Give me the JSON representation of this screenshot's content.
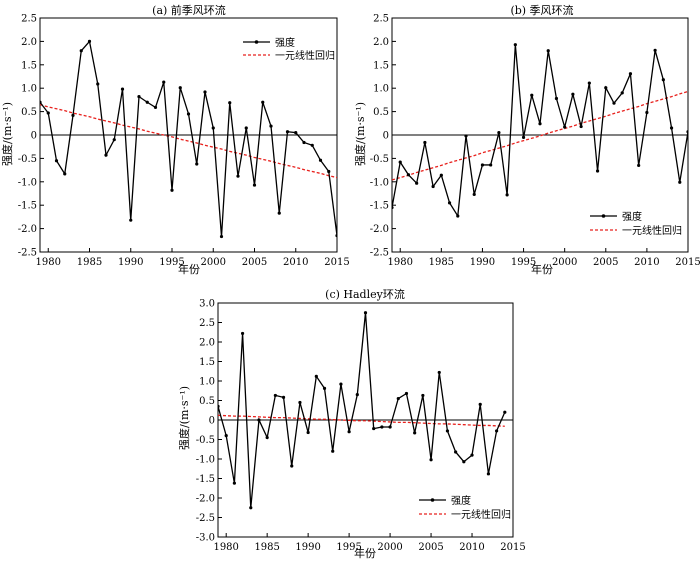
{
  "chart_data": [
    {
      "type": "line",
      "title": "(a) 前季风环流",
      "xlabel": "年份",
      "ylabel": "强度/(m·s⁻¹)",
      "xlim": [
        1979,
        2015
      ],
      "ylim": [
        -2.5,
        2.5
      ],
      "xticks": [
        1980,
        1985,
        1990,
        1995,
        2000,
        2005,
        2010,
        2015
      ],
      "xtick_labels": [
        "1980",
        "1985",
        "1990",
        "1995",
        "2000",
        "2005",
        "2010",
        "2015"
      ],
      "yticks": [
        -2.5,
        -2.0,
        -1.5,
        -1.0,
        -0.5,
        0,
        0.5,
        1.0,
        1.5,
        2.0,
        2.5
      ],
      "ytick_labels": [
        "-2.5",
        "-2.0",
        "-1.5",
        "-1.0",
        "-0.5",
        "0",
        "0.5",
        "1.0",
        "1.5",
        "2.0",
        "2.5"
      ],
      "zero_line": true,
      "legend_position": "top-right",
      "x": [
        1979,
        1980,
        1981,
        1982,
        1983,
        1984,
        1985,
        1986,
        1987,
        1988,
        1989,
        1990,
        1991,
        1992,
        1993,
        1994,
        1995,
        1996,
        1997,
        1998,
        1999,
        2000,
        2001,
        2002,
        2003,
        2004,
        2005,
        2006,
        2007,
        2008,
        2009,
        2010,
        2011,
        2012,
        2013,
        2014,
        2015
      ],
      "series": [
        {
          "name": "强度",
          "style": "line-marker",
          "color": "#000000",
          "values": [
            0.7,
            0.47,
            -0.55,
            -0.83,
            0.42,
            1.8,
            2.0,
            1.09,
            -0.43,
            -0.1,
            0.98,
            -1.82,
            0.82,
            0.7,
            0.59,
            1.13,
            -1.18,
            1.01,
            0.45,
            -0.62,
            0.92,
            0.15,
            -2.17,
            0.69,
            -0.88,
            0.15,
            -1.07,
            0.7,
            0.19,
            -1.67,
            0.07,
            0.05,
            -0.16,
            -0.22,
            -0.54,
            -0.78,
            -2.15
          ]
        },
        {
          "name": "一元线性回归",
          "style": "dashed",
          "color": "#e8211d",
          "values": [
            0.65,
            0.6,
            0.56,
            0.52,
            0.47,
            0.43,
            0.39,
            0.34,
            0.3,
            0.26,
            0.21,
            0.17,
            0.13,
            0.08,
            0.04,
            0.0,
            -0.04,
            -0.09,
            -0.13,
            -0.17,
            -0.22,
            -0.26,
            -0.3,
            -0.35,
            -0.39,
            -0.43,
            -0.48,
            -0.52,
            -0.56,
            -0.61,
            -0.65,
            -0.69,
            -0.74,
            -0.78,
            -0.82,
            -0.87,
            -0.91
          ]
        }
      ]
    },
    {
      "type": "line",
      "title": "(b) 季风环流",
      "xlabel": "年份",
      "ylabel": "强度/(m·s⁻¹)",
      "xlim": [
        1979,
        2015
      ],
      "ylim": [
        -2.5,
        2.5
      ],
      "xticks": [
        1980,
        1985,
        1990,
        1995,
        2000,
        2005,
        2010,
        2015
      ],
      "xtick_labels": [
        "1980",
        "1985",
        "1990",
        "1995",
        "2000",
        "2005",
        "2010",
        "2015"
      ],
      "yticks": [
        -2.5,
        -2.0,
        -1.5,
        -1.0,
        -0.5,
        0,
        0.5,
        1.0,
        1.5,
        2.0,
        2.5
      ],
      "ytick_labels": [
        "-2.5",
        "-2.0",
        "-1.5",
        "-1.0",
        "-0.5",
        "0",
        "0.5",
        "1.0",
        "1.5",
        "2.0",
        "2.5"
      ],
      "zero_line": true,
      "legend_position": "bottom-right",
      "x": [
        1979,
        1980,
        1981,
        1982,
        1983,
        1984,
        1985,
        1986,
        1987,
        1988,
        1989,
        1990,
        1991,
        1992,
        1993,
        1994,
        1995,
        1996,
        1997,
        1998,
        1999,
        2000,
        2001,
        2002,
        2003,
        2004,
        2005,
        2006,
        2007,
        2008,
        2009,
        2010,
        2011,
        2012,
        2013,
        2014,
        2015
      ],
      "series": [
        {
          "name": "强度",
          "style": "line-marker",
          "color": "#000000",
          "values": [
            -1.55,
            -0.58,
            -0.85,
            -1.03,
            -0.16,
            -1.1,
            -0.86,
            -1.45,
            -1.73,
            -0.02,
            -1.27,
            -0.64,
            -0.64,
            0.05,
            -1.28,
            1.93,
            -0.05,
            0.85,
            0.24,
            1.8,
            0.78,
            0.17,
            0.87,
            0.18,
            1.11,
            -0.77,
            1.01,
            0.68,
            0.9,
            1.31,
            -0.65,
            0.48,
            1.81,
            1.18,
            0.15,
            -1.01,
            0.07
          ]
        },
        {
          "name": "一元线性回归",
          "style": "dashed",
          "color": "#e8211d",
          "values": [
            -0.96,
            -0.91,
            -0.86,
            -0.8,
            -0.75,
            -0.7,
            -0.65,
            -0.59,
            -0.54,
            -0.49,
            -0.44,
            -0.38,
            -0.33,
            -0.28,
            -0.23,
            -0.17,
            -0.12,
            -0.07,
            -0.02,
            0.04,
            0.09,
            0.14,
            0.19,
            0.25,
            0.3,
            0.35,
            0.4,
            0.46,
            0.51,
            0.56,
            0.61,
            0.67,
            0.72,
            0.77,
            0.82,
            0.88,
            0.93
          ]
        }
      ]
    },
    {
      "type": "line",
      "title": "(c) Hadley环流",
      "xlabel": "年份",
      "ylabel": "强度/(m·s⁻¹)",
      "xlim": [
        1979,
        2015
      ],
      "ylim": [
        -3.0,
        3.0
      ],
      "xticks": [
        1980,
        1985,
        1990,
        1995,
        2000,
        2005,
        2010,
        2015
      ],
      "xtick_labels": [
        "1980",
        "1985",
        "1990",
        "1995",
        "2000",
        "2005",
        "2010",
        "2015"
      ],
      "yticks": [
        -3.0,
        -2.5,
        -2.0,
        -1.5,
        -1.0,
        -0.5,
        0,
        0.5,
        1.0,
        1.5,
        2.0,
        2.5,
        3.0
      ],
      "ytick_labels": [
        "-3.0",
        "-2.5",
        "-2.0",
        "-1.5",
        "-1.0",
        "-0.5",
        "0",
        "0.5",
        "1.0",
        "1.5",
        "2.0",
        "2.5",
        "3.0"
      ],
      "zero_line": true,
      "legend_position": "bottom-left",
      "x": [
        1979,
        1980,
        1981,
        1982,
        1983,
        1984,
        1985,
        1986,
        1987,
        1988,
        1989,
        1990,
        1991,
        1992,
        1993,
        1994,
        1995,
        1996,
        1997,
        1998,
        1999,
        2000,
        2001,
        2002,
        2003,
        2004,
        2005,
        2006,
        2007,
        2008,
        2009,
        2010,
        2011,
        2012,
        2013,
        2014
      ],
      "series": [
        {
          "name": "强度",
          "style": "line-marker",
          "color": "#000000",
          "values": [
            0.35,
            -0.4,
            -1.62,
            2.22,
            -2.25,
            0.0,
            -0.45,
            0.63,
            0.58,
            -1.18,
            0.45,
            -0.32,
            1.12,
            0.81,
            -0.8,
            0.92,
            -0.3,
            0.65,
            2.75,
            -0.22,
            -0.18,
            -0.18,
            0.55,
            0.68,
            -0.33,
            0.63,
            -1.02,
            1.22,
            -0.28,
            -0.82,
            -1.07,
            -0.9,
            0.4,
            -1.38,
            -0.28,
            0.2
          ]
        },
        {
          "name": "一元线性回归",
          "style": "dashed",
          "color": "#e8211d",
          "values": [
            0.12,
            0.11,
            0.1,
            0.1,
            0.09,
            0.08,
            0.07,
            0.06,
            0.06,
            0.05,
            0.04,
            0.03,
            0.02,
            0.02,
            0.01,
            0.0,
            -0.01,
            -0.02,
            -0.02,
            -0.03,
            -0.04,
            -0.05,
            -0.06,
            -0.06,
            -0.07,
            -0.08,
            -0.09,
            -0.1,
            -0.1,
            -0.11,
            -0.12,
            -0.13,
            -0.14,
            -0.14,
            -0.15,
            -0.16
          ]
        }
      ]
    }
  ]
}
